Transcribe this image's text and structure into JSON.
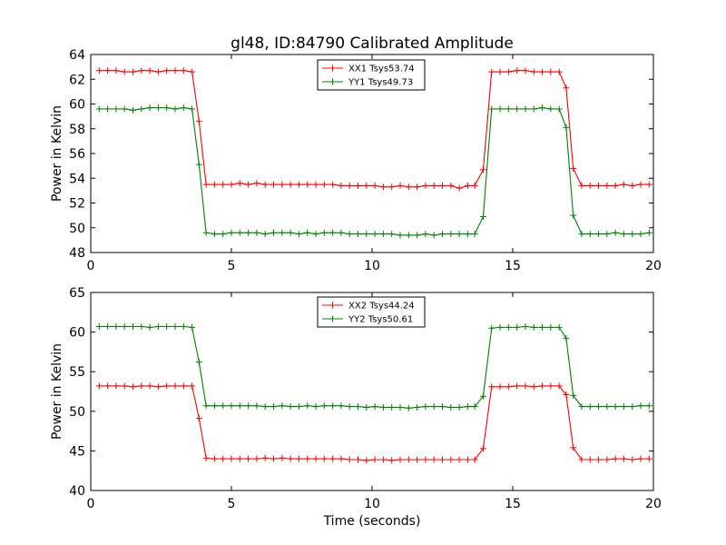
{
  "title": "gl48, ID:84790 Calibrated Amplitude",
  "chart_data": [
    {
      "type": "line",
      "ylabel": "Power in Kelvin",
      "xlabel": "",
      "xlim": [
        0,
        20
      ],
      "ylim": [
        48,
        64
      ],
      "xticks": [
        0,
        5,
        10,
        15,
        20
      ],
      "yticks": [
        48,
        50,
        52,
        54,
        56,
        58,
        60,
        62,
        64
      ],
      "legend_position": "top-center",
      "x": [
        0.3,
        0.6,
        0.9,
        1.2,
        1.5,
        1.8,
        2.1,
        2.4,
        2.7,
        3.0,
        3.3,
        3.6,
        3.85,
        4.1,
        4.4,
        4.7,
        5.0,
        5.3,
        5.6,
        5.9,
        6.2,
        6.5,
        6.8,
        7.1,
        7.4,
        7.7,
        8.0,
        8.3,
        8.6,
        8.9,
        9.2,
        9.5,
        9.8,
        10.1,
        10.4,
        10.7,
        11.0,
        11.3,
        11.6,
        11.9,
        12.2,
        12.5,
        12.8,
        13.1,
        13.4,
        13.65,
        13.95,
        14.25,
        14.55,
        14.85,
        15.15,
        15.45,
        15.75,
        16.05,
        16.35,
        16.65,
        16.9,
        17.15,
        17.45,
        17.75,
        18.05,
        18.35,
        18.65,
        18.95,
        19.25,
        19.55,
        19.85
      ],
      "series": [
        {
          "name": "XX1 Tsys53.74",
          "color": "#ff0000",
          "values": [
            62.7,
            62.7,
            62.7,
            62.6,
            62.6,
            62.7,
            62.7,
            62.6,
            62.7,
            62.7,
            62.7,
            62.6,
            58.6,
            53.5,
            53.5,
            53.5,
            53.5,
            53.6,
            53.5,
            53.6,
            53.5,
            53.5,
            53.5,
            53.5,
            53.5,
            53.5,
            53.5,
            53.5,
            53.5,
            53.4,
            53.4,
            53.4,
            53.4,
            53.4,
            53.3,
            53.3,
            53.4,
            53.3,
            53.3,
            53.4,
            53.4,
            53.4,
            53.4,
            53.2,
            53.4,
            53.4,
            54.7,
            62.6,
            62.6,
            62.6,
            62.7,
            62.7,
            62.6,
            62.6,
            62.6,
            62.6,
            61.3,
            54.8,
            53.4,
            53.4,
            53.4,
            53.4,
            53.4,
            53.5,
            53.4,
            53.5,
            53.5
          ]
        },
        {
          "name": "YY1 Tsys49.73",
          "color": "#008000",
          "values": [
            59.6,
            59.6,
            59.6,
            59.6,
            59.5,
            59.6,
            59.7,
            59.7,
            59.7,
            59.6,
            59.7,
            59.6,
            55.1,
            49.6,
            49.5,
            49.5,
            49.6,
            49.6,
            49.6,
            49.6,
            49.5,
            49.6,
            49.6,
            49.6,
            49.5,
            49.6,
            49.5,
            49.6,
            49.6,
            49.6,
            49.5,
            49.5,
            49.5,
            49.5,
            49.5,
            49.5,
            49.4,
            49.4,
            49.4,
            49.5,
            49.4,
            49.5,
            49.5,
            49.5,
            49.5,
            49.5,
            50.9,
            59.6,
            59.6,
            59.6,
            59.6,
            59.6,
            59.6,
            59.7,
            59.6,
            59.6,
            58.1,
            51.0,
            49.5,
            49.5,
            49.5,
            49.5,
            49.6,
            49.5,
            49.5,
            49.5,
            49.6
          ]
        }
      ]
    },
    {
      "type": "line",
      "ylabel": "Power in Kelvin",
      "xlabel": "Time (seconds)",
      "xlim": [
        0,
        20
      ],
      "ylim": [
        40,
        65
      ],
      "xticks": [
        0,
        5,
        10,
        15,
        20
      ],
      "yticks": [
        40,
        45,
        50,
        55,
        60,
        65
      ],
      "legend_position": "top-center",
      "x": [
        0.3,
        0.6,
        0.9,
        1.2,
        1.5,
        1.8,
        2.1,
        2.4,
        2.7,
        3.0,
        3.3,
        3.6,
        3.85,
        4.1,
        4.4,
        4.7,
        5.0,
        5.3,
        5.6,
        5.9,
        6.2,
        6.5,
        6.8,
        7.1,
        7.4,
        7.7,
        8.0,
        8.3,
        8.6,
        8.9,
        9.2,
        9.5,
        9.8,
        10.1,
        10.4,
        10.7,
        11.0,
        11.3,
        11.6,
        11.9,
        12.2,
        12.5,
        12.8,
        13.1,
        13.4,
        13.65,
        13.95,
        14.25,
        14.55,
        14.85,
        15.15,
        15.45,
        15.75,
        16.05,
        16.35,
        16.65,
        16.9,
        17.15,
        17.45,
        17.75,
        18.05,
        18.35,
        18.65,
        18.95,
        19.25,
        19.55,
        19.85
      ],
      "series": [
        {
          "name": "XX2 Tsys44.24",
          "color": "#ff0000",
          "values": [
            53.2,
            53.2,
            53.2,
            53.2,
            53.1,
            53.2,
            53.2,
            53.1,
            53.2,
            53.2,
            53.2,
            53.2,
            49.1,
            44.1,
            44.0,
            44.0,
            44.0,
            44.0,
            44.0,
            44.0,
            44.1,
            44.0,
            44.1,
            44.0,
            44.0,
            44.0,
            44.0,
            44.0,
            44.0,
            44.0,
            43.9,
            43.9,
            43.8,
            43.9,
            43.9,
            43.8,
            43.9,
            43.9,
            43.9,
            43.9,
            43.9,
            43.9,
            43.9,
            43.9,
            43.9,
            43.9,
            45.3,
            53.1,
            53.1,
            53.1,
            53.2,
            53.2,
            53.1,
            53.2,
            53.2,
            53.2,
            52.1,
            45.4,
            43.9,
            43.9,
            43.9,
            43.9,
            44.0,
            44.0,
            43.9,
            44.0,
            44.0
          ]
        },
        {
          "name": "YY2 Tsys50.61",
          "color": "#008000",
          "values": [
            60.7,
            60.7,
            60.7,
            60.7,
            60.7,
            60.7,
            60.6,
            60.7,
            60.7,
            60.7,
            60.7,
            60.6,
            56.2,
            50.7,
            50.7,
            50.7,
            50.7,
            50.7,
            50.7,
            50.7,
            50.6,
            50.6,
            50.7,
            50.6,
            50.6,
            50.7,
            50.6,
            50.7,
            50.7,
            50.7,
            50.6,
            50.6,
            50.5,
            50.6,
            50.5,
            50.5,
            50.5,
            50.4,
            50.5,
            50.6,
            50.6,
            50.6,
            50.5,
            50.5,
            50.6,
            50.6,
            51.9,
            60.5,
            60.6,
            60.6,
            60.6,
            60.7,
            60.6,
            60.6,
            60.6,
            60.6,
            59.2,
            52.0,
            50.6,
            50.6,
            50.6,
            50.6,
            50.6,
            50.6,
            50.6,
            50.7,
            50.7
          ]
        }
      ]
    }
  ]
}
